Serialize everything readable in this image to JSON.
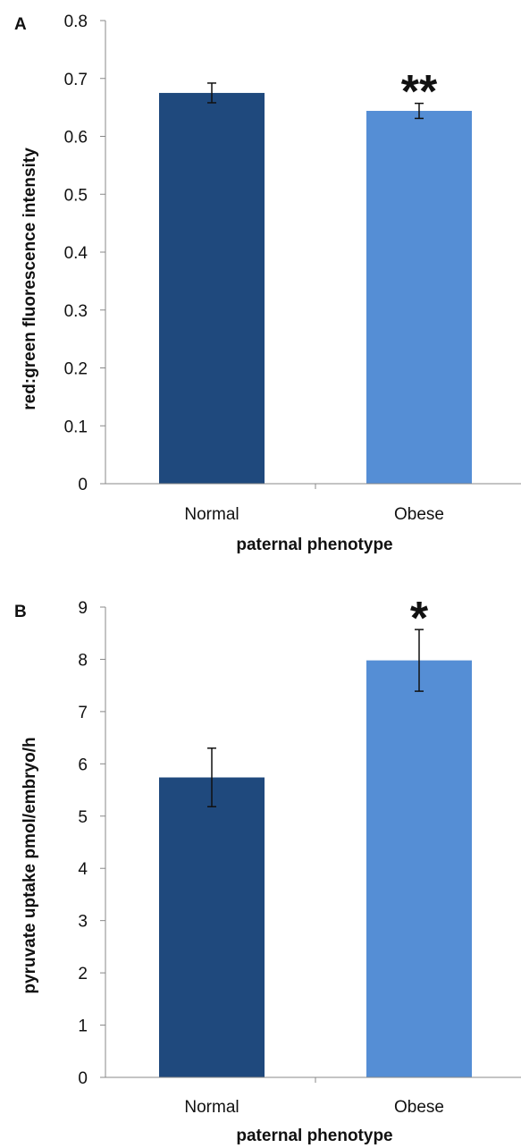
{
  "chart_data": [
    {
      "panel": "A",
      "type": "bar",
      "categories": [
        "Normal",
        "Obese"
      ],
      "values": [
        0.675,
        0.644
      ],
      "errors": [
        0.017,
        0.013
      ],
      "colors": [
        "#1f497d",
        "#558ed5"
      ],
      "annotations": [
        "",
        "**"
      ],
      "xlabel": "paternal phenotype",
      "ylabel": "red:green fluorescence intensity",
      "ylim": [
        0,
        0.8
      ],
      "yticks": [
        "0",
        "0.1",
        "0.2",
        "0.3",
        "0.4",
        "0.5",
        "0.6",
        "0.7",
        "0.8"
      ],
      "grid": false
    },
    {
      "panel": "B",
      "type": "bar",
      "categories": [
        "Normal",
        "Obese"
      ],
      "values": [
        5.74,
        7.98
      ],
      "errors": [
        0.56,
        0.59
      ],
      "colors": [
        "#1f497d",
        "#558ed5"
      ],
      "annotations": [
        "",
        "*"
      ],
      "xlabel": "paternal phenotype",
      "ylabel": "pyruvate uptake pmol/embryo/h",
      "ylim": [
        0,
        9
      ],
      "yticks": [
        "0",
        "1",
        "2",
        "3",
        "4",
        "5",
        "6",
        "7",
        "8",
        "9"
      ],
      "grid": false
    }
  ]
}
